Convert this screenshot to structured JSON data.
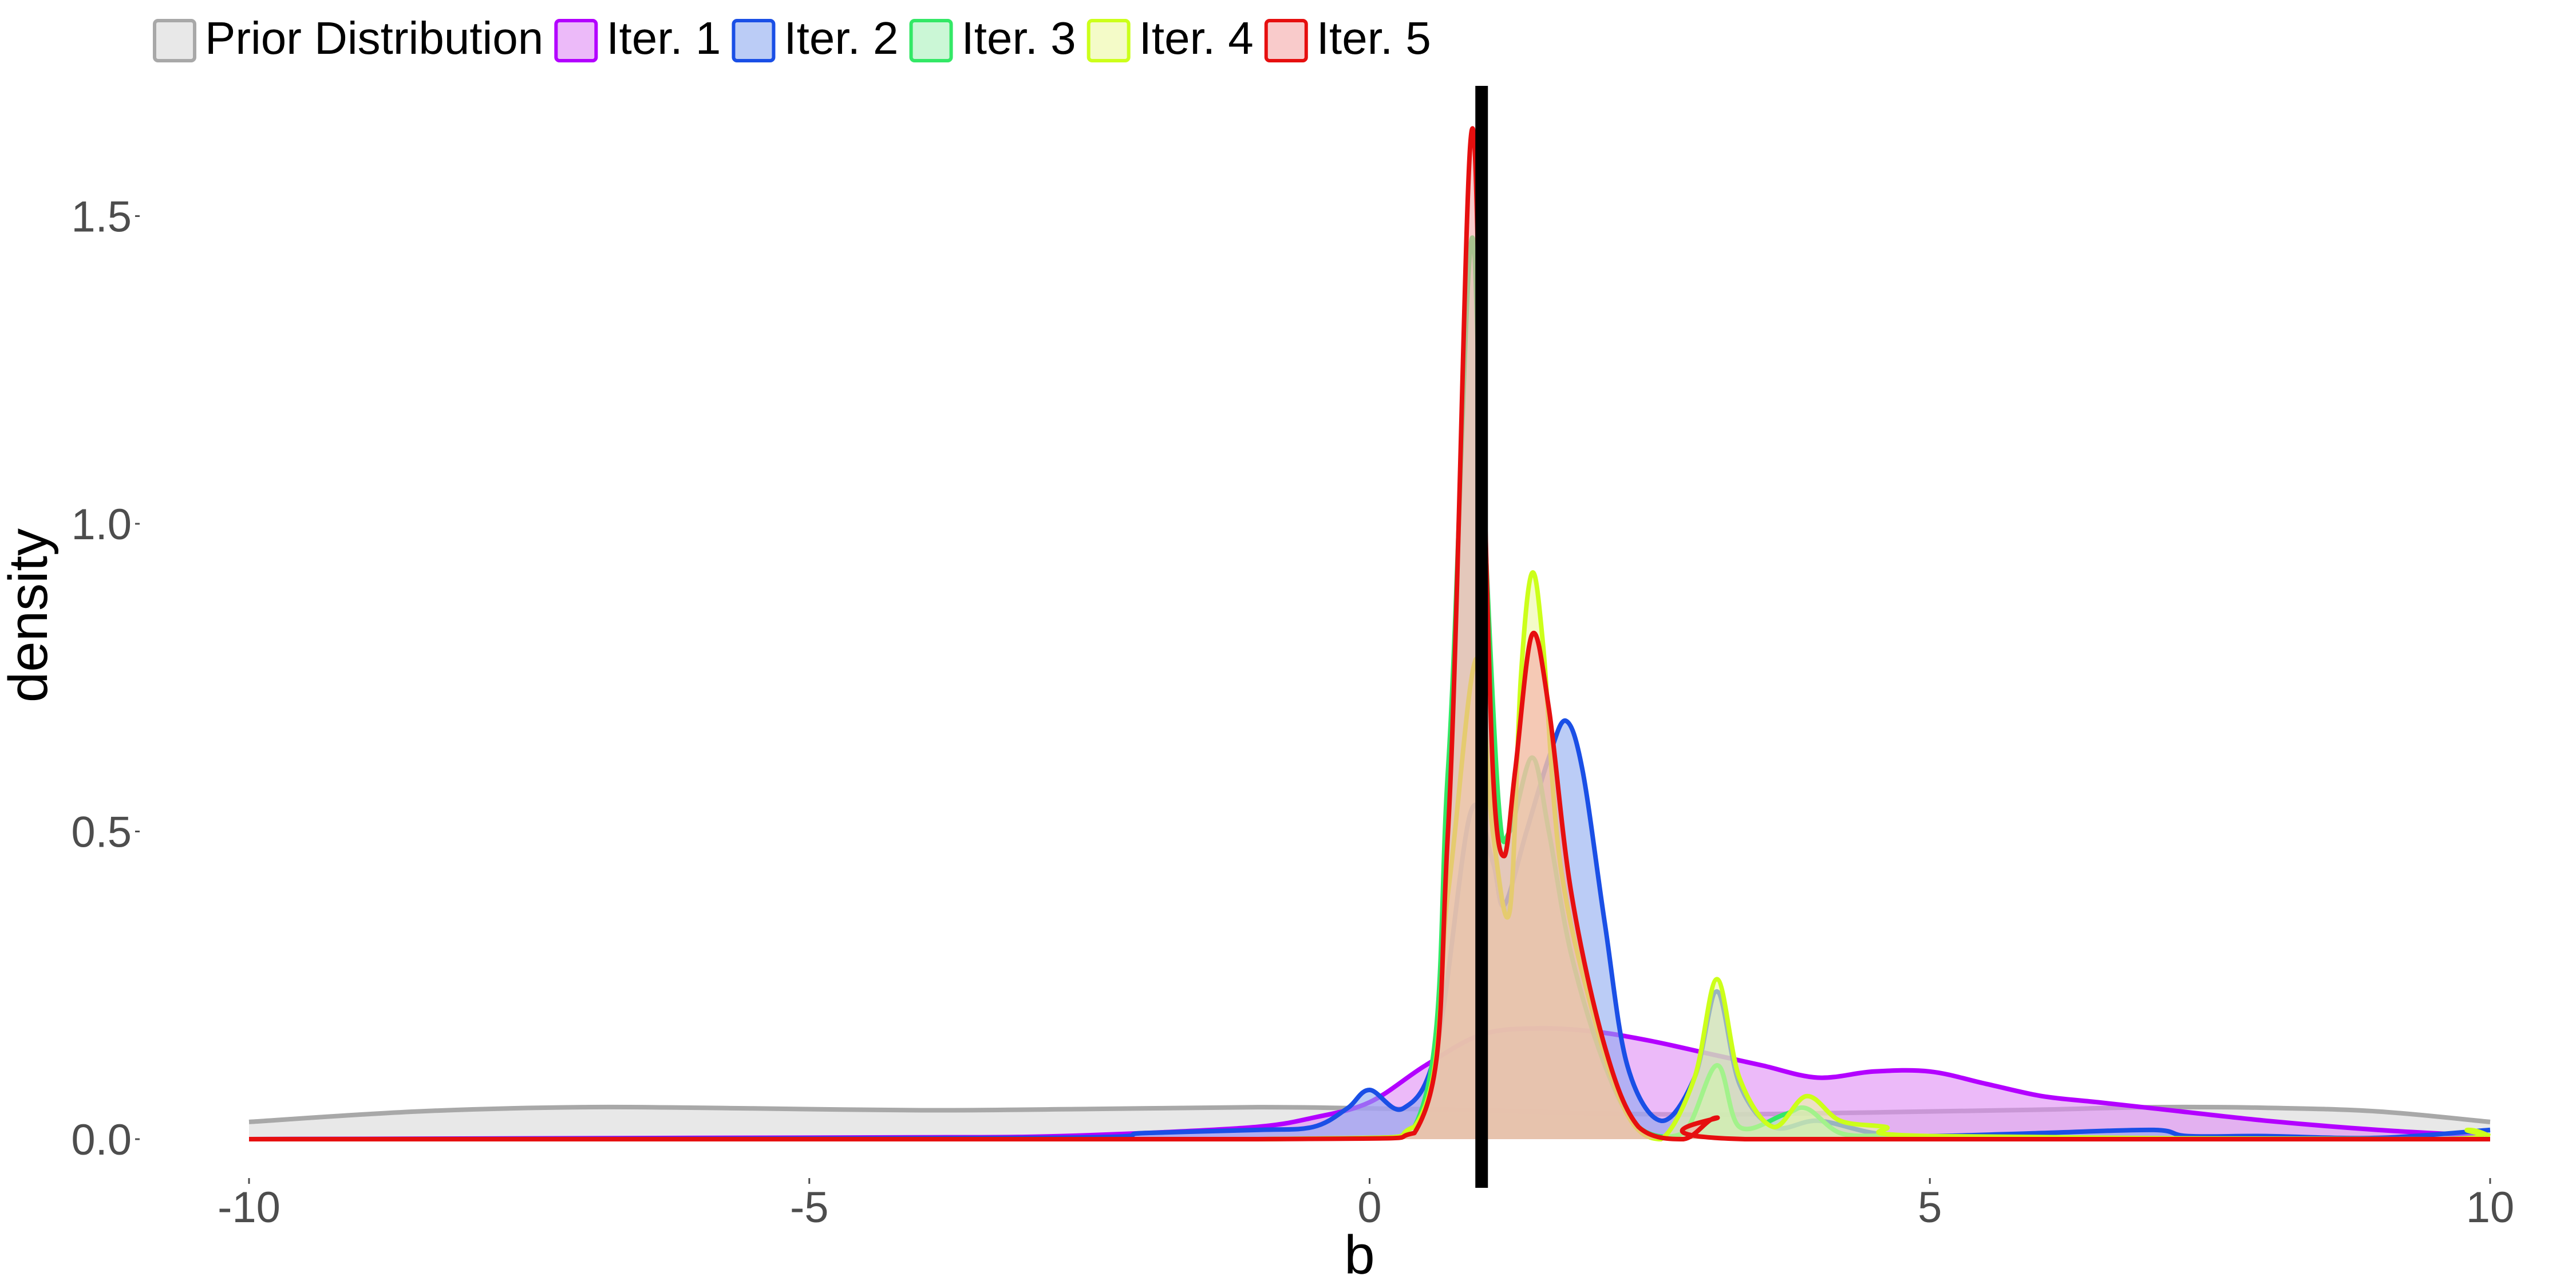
{
  "chart_data": {
    "type": "area",
    "title": "",
    "xlabel": "b",
    "ylabel": "density",
    "xlim": [
      -10,
      10
    ],
    "ylim": [
      0,
      1.65
    ],
    "grid": false,
    "legend_position": "top-left",
    "x_ticks": [
      {
        "value": -10,
        "label": "-10"
      },
      {
        "value": -5,
        "label": "-5"
      },
      {
        "value": 0,
        "label": "0"
      },
      {
        "value": 5,
        "label": "5"
      },
      {
        "value": 10,
        "label": "10"
      }
    ],
    "y_ticks": [
      {
        "value": 0,
        "label": "0.0"
      },
      {
        "value": 0.5,
        "label": "0.5"
      },
      {
        "value": 1.0,
        "label": "1.0"
      },
      {
        "value": 1.5,
        "label": "1.5"
      }
    ],
    "reference_line": {
      "x": 1.0,
      "color": "#000000"
    },
    "series": [
      {
        "name": "Prior Distribution",
        "line_color": "#a8a8a8",
        "fill_color": "#d9d9d9",
        "points": [
          [
            -10,
            0.028
          ],
          [
            -8.5,
            0.045
          ],
          [
            -7,
            0.052
          ],
          [
            -5.5,
            0.05
          ],
          [
            -4,
            0.047
          ],
          [
            -2.5,
            0.049
          ],
          [
            -1,
            0.052
          ],
          [
            0,
            0.05
          ],
          [
            1,
            0.047
          ],
          [
            2,
            0.042
          ],
          [
            3,
            0.04
          ],
          [
            4,
            0.042
          ],
          [
            5,
            0.045
          ],
          [
            6,
            0.048
          ],
          [
            7,
            0.052
          ],
          [
            8,
            0.051
          ],
          [
            9,
            0.045
          ],
          [
            10,
            0.028
          ]
        ]
      },
      {
        "name": "Iter. 1",
        "line_color": "#b300ff",
        "fill_color": "#e08cf5",
        "points": [
          [
            -10,
            0.0
          ],
          [
            -6,
            0.002
          ],
          [
            -4,
            0.003
          ],
          [
            -3,
            0.004
          ],
          [
            -2,
            0.01
          ],
          [
            -1,
            0.02
          ],
          [
            -0.5,
            0.035
          ],
          [
            0,
            0.06
          ],
          [
            0.5,
            0.12
          ],
          [
            1,
            0.17
          ],
          [
            1.5,
            0.18
          ],
          [
            2,
            0.175
          ],
          [
            2.5,
            0.16
          ],
          [
            3,
            0.14
          ],
          [
            3.5,
            0.12
          ],
          [
            4,
            0.1
          ],
          [
            4.5,
            0.11
          ],
          [
            5,
            0.11
          ],
          [
            5.5,
            0.09
          ],
          [
            6,
            0.07
          ],
          [
            6.5,
            0.06
          ],
          [
            7,
            0.05
          ],
          [
            8,
            0.03
          ],
          [
            9,
            0.015
          ],
          [
            10,
            0.005
          ]
        ]
      },
      {
        "name": "Iter. 2",
        "line_color": "#1a4fe6",
        "fill_color": "#8eaaf0",
        "points": [
          [
            -10,
            0.0
          ],
          [
            -3,
            0.002
          ],
          [
            -2,
            0.01
          ],
          [
            -1,
            0.015
          ],
          [
            -0.5,
            0.02
          ],
          [
            -0.2,
            0.05
          ],
          [
            0,
            0.08
          ],
          [
            0.3,
            0.05
          ],
          [
            0.6,
            0.15
          ],
          [
            0.9,
            0.53
          ],
          [
            1.1,
            0.45
          ],
          [
            1.2,
            0.38
          ],
          [
            1.4,
            0.5
          ],
          [
            1.6,
            0.62
          ],
          [
            1.75,
            0.68
          ],
          [
            1.9,
            0.6
          ],
          [
            2.1,
            0.35
          ],
          [
            2.3,
            0.12
          ],
          [
            2.6,
            0.03
          ],
          [
            2.9,
            0.1
          ],
          [
            3.1,
            0.24
          ],
          [
            3.3,
            0.09
          ],
          [
            3.6,
            0.02
          ],
          [
            4,
            0.03
          ],
          [
            4.5,
            0.01
          ],
          [
            5,
            0.005
          ],
          [
            6,
            0.01
          ],
          [
            7,
            0.015
          ],
          [
            7.3,
            0.005
          ],
          [
            8,
            0.005
          ],
          [
            9,
            0.002
          ],
          [
            10,
            0.015
          ]
        ]
      },
      {
        "name": "Iter. 3",
        "line_color": "#33e866",
        "fill_color": "#a8f2bb",
        "points": [
          [
            -10,
            0.0
          ],
          [
            -1,
            0.0
          ],
          [
            0.4,
            0.02
          ],
          [
            0.7,
            0.6
          ],
          [
            0.9,
            1.45
          ],
          [
            1.0,
            1.1
          ],
          [
            1.15,
            0.55
          ],
          [
            1.25,
            0.5
          ],
          [
            1.45,
            0.62
          ],
          [
            1.6,
            0.5
          ],
          [
            1.8,
            0.3
          ],
          [
            2.1,
            0.12
          ],
          [
            2.4,
            0.02
          ],
          [
            2.8,
            0.01
          ],
          [
            3.1,
            0.12
          ],
          [
            3.3,
            0.02
          ],
          [
            3.7,
            0.04
          ],
          [
            3.9,
            0.05
          ],
          [
            4.2,
            0.01
          ],
          [
            4.6,
            0.005
          ],
          [
            5,
            0.0
          ],
          [
            10,
            0.0
          ]
        ]
      },
      {
        "name": "Iter. 4",
        "line_color": "#ccff1a",
        "fill_color": "#ecf9a3",
        "points": [
          [
            -10,
            0.0
          ],
          [
            -1,
            0.0
          ],
          [
            0.4,
            0.02
          ],
          [
            0.7,
            0.4
          ],
          [
            0.95,
            0.78
          ],
          [
            1.1,
            0.5
          ],
          [
            1.25,
            0.37
          ],
          [
            1.35,
            0.75
          ],
          [
            1.45,
            0.92
          ],
          [
            1.55,
            0.8
          ],
          [
            1.7,
            0.45
          ],
          [
            2.0,
            0.2
          ],
          [
            2.3,
            0.04
          ],
          [
            2.6,
            0.0
          ],
          [
            2.9,
            0.1
          ],
          [
            3.1,
            0.26
          ],
          [
            3.3,
            0.1
          ],
          [
            3.6,
            0.02
          ],
          [
            3.9,
            0.07
          ],
          [
            4.2,
            0.03
          ],
          [
            4.6,
            0.02
          ],
          [
            5,
            0.005
          ],
          [
            9.5,
            0.0
          ],
          [
            9.8,
            0.015
          ],
          [
            10,
            0.005
          ]
        ]
      },
      {
        "name": "Iter. 5",
        "line_color": "#e60f0f",
        "fill_color": "#f5a8a8",
        "points": [
          [
            -10,
            0.0
          ],
          [
            -1,
            0.0
          ],
          [
            0.4,
            0.01
          ],
          [
            0.7,
            0.5
          ],
          [
            0.9,
            1.62
          ],
          [
            1.0,
            1.2
          ],
          [
            1.1,
            0.6
          ],
          [
            1.2,
            0.46
          ],
          [
            1.3,
            0.6
          ],
          [
            1.45,
            0.82
          ],
          [
            1.6,
            0.7
          ],
          [
            1.8,
            0.4
          ],
          [
            2.1,
            0.15
          ],
          [
            2.4,
            0.02
          ],
          [
            2.8,
            0.0
          ],
          [
            3.1,
            0.035
          ],
          [
            3.35,
            0.0
          ],
          [
            10,
            0.0
          ]
        ]
      }
    ]
  }
}
